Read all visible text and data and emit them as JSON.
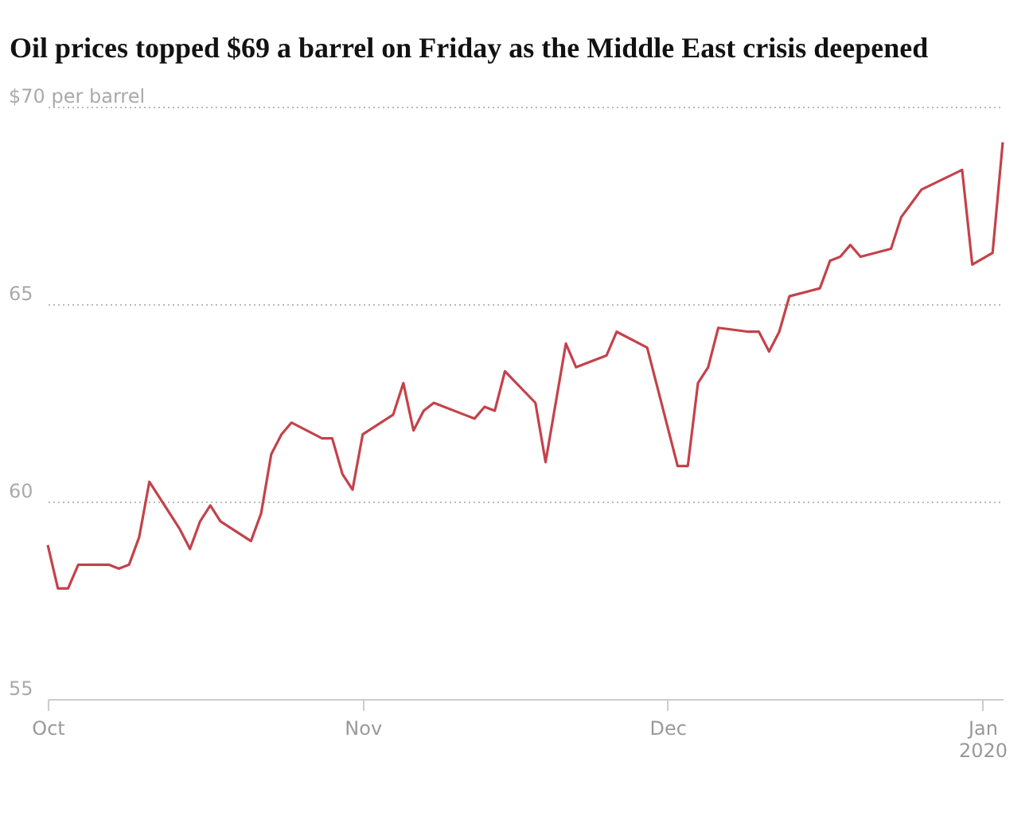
{
  "chart_data": {
    "type": "line",
    "title": "Oil prices topped $69 a barrel on Friday as the Middle East crisis deepened",
    "x": [
      "2019-10-01",
      "2019-10-02",
      "2019-10-03",
      "2019-10-04",
      "2019-10-07",
      "2019-10-08",
      "2019-10-09",
      "2019-10-10",
      "2019-10-11",
      "2019-10-14",
      "2019-10-15",
      "2019-10-16",
      "2019-10-17",
      "2019-10-18",
      "2019-10-21",
      "2019-10-22",
      "2019-10-23",
      "2019-10-24",
      "2019-10-25",
      "2019-10-28",
      "2019-10-29",
      "2019-10-30",
      "2019-10-31",
      "2019-11-01",
      "2019-11-04",
      "2019-11-05",
      "2019-11-06",
      "2019-11-07",
      "2019-11-08",
      "2019-11-11",
      "2019-11-12",
      "2019-11-13",
      "2019-11-14",
      "2019-11-15",
      "2019-11-18",
      "2019-11-19",
      "2019-11-21",
      "2019-11-22",
      "2019-11-25",
      "2019-11-26",
      "2019-11-29",
      "2019-12-02",
      "2019-12-03",
      "2019-12-04",
      "2019-12-05",
      "2019-12-06",
      "2019-12-09",
      "2019-12-10",
      "2019-12-11",
      "2019-12-12",
      "2019-12-13",
      "2019-12-16",
      "2019-12-17",
      "2019-12-18",
      "2019-12-19",
      "2019-12-20",
      "2019-12-23",
      "2019-12-24",
      "2019-12-26",
      "2019-12-30",
      "2019-12-31",
      "2020-01-02",
      "2020-01-03"
    ],
    "values": [
      58.9,
      57.8,
      57.8,
      58.4,
      58.4,
      58.3,
      58.4,
      59.1,
      60.5,
      59.3,
      58.8,
      59.5,
      59.9,
      59.5,
      59.0,
      59.7,
      61.2,
      61.7,
      62.0,
      61.6,
      61.6,
      60.7,
      60.3,
      61.7,
      62.2,
      63.0,
      61.8,
      62.3,
      62.5,
      62.2,
      62.1,
      62.4,
      62.3,
      63.3,
      62.5,
      61.0,
      64.0,
      63.4,
      63.7,
      64.3,
      63.9,
      60.9,
      60.9,
      63.0,
      63.4,
      64.4,
      64.3,
      64.3,
      63.8,
      64.3,
      65.2,
      65.4,
      66.1,
      66.2,
      66.5,
      66.2,
      66.4,
      67.2,
      67.9,
      68.4,
      66.0,
      66.3,
      69.1
    ],
    "color": "#c4424a",
    "xlim": [
      "2019-10-01",
      "2020-01-03"
    ],
    "xticks": [
      {
        "value": "2019-10-01",
        "label": "Oct"
      },
      {
        "value": "2019-11-01",
        "label": "Nov"
      },
      {
        "value": "2019-12-01",
        "label": "Dec"
      },
      {
        "value": "2020-01-01",
        "label": "Jan 2020"
      }
    ],
    "ylim": [
      55,
      70
    ],
    "yticks": [
      55,
      60,
      65,
      {
        "value": 70,
        "label": "$70 per barrel"
      }
    ],
    "grid": "y"
  }
}
